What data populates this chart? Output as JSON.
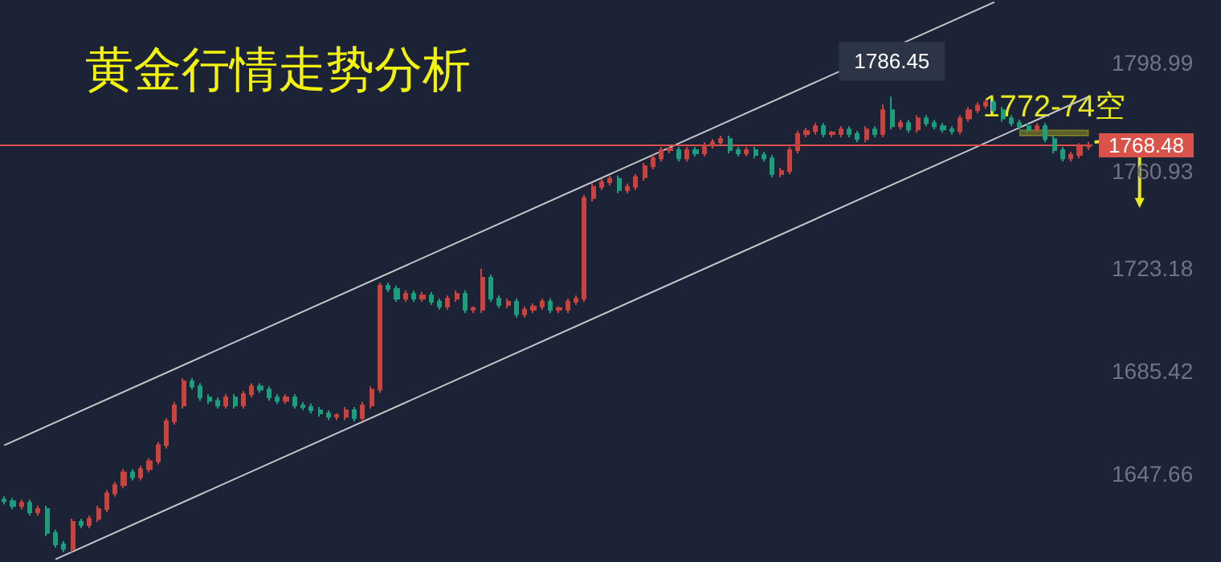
{
  "chart_data": {
    "type": "candlestick",
    "title": "黄金行情走势分析",
    "categories": [
      null,
      null,
      null,
      null,
      null,
      null,
      null,
      null,
      null,
      null,
      null,
      null,
      null,
      null,
      null,
      null,
      null,
      null,
      null,
      null,
      null,
      null,
      null,
      null,
      null,
      null,
      null,
      null,
      null,
      null,
      null,
      null,
      null,
      null,
      null,
      null,
      null,
      null,
      null,
      null,
      null,
      null,
      null,
      null,
      null,
      null,
      null,
      null,
      null,
      null,
      null,
      null,
      null,
      null,
      null,
      null,
      null,
      null,
      null,
      null,
      null,
      null,
      null,
      null,
      null,
      null,
      null,
      null,
      null,
      null,
      null,
      null,
      null,
      null,
      null,
      null,
      null,
      null,
      null,
      null,
      null,
      null,
      null,
      null,
      null,
      null,
      null,
      null,
      null,
      null,
      null,
      null,
      null,
      null,
      null,
      null,
      null,
      null,
      null,
      null,
      null,
      null,
      null,
      null,
      null,
      null,
      null,
      null,
      null,
      null,
      null,
      null,
      null,
      null,
      null,
      null,
      null,
      null,
      null,
      null,
      null,
      null,
      null,
      null,
      null,
      null,
      null,
      null
    ],
    "series": [
      {
        "colors": [
          "#1e9d7c",
          "#1e9d7c",
          "#c9443f",
          "#1e9d7c",
          "#c9443f",
          "#1e9d7c",
          "#1e9d7c",
          "#1e9d7c",
          "#c9443f",
          "#1e9d7c",
          "#c9443f",
          "#c9443f",
          "#c9443f",
          "#c9443f",
          "#c9443f",
          "#1e9d7c",
          "#c9443f",
          "#c9443f",
          "#c9443f",
          "#c9443f",
          "#c9443f",
          "#c9443f",
          "#1e9d7c",
          "#1e9d7c",
          "#1e9d7c",
          "#1e9d7c",
          "#c9443f",
          "#1e9d7c",
          "#c9443f",
          "#c9443f",
          "#1e9d7c",
          "#1e9d7c",
          "#1e9d7c",
          "#c9443f",
          "#1e9d7c",
          "#1e9d7c",
          "#1e9d7c",
          "#1e9d7c",
          "#1e9d7c",
          "#c9443f",
          "#c9443f",
          "#1e9d7c",
          "#c9443f",
          "#c9443f",
          "#c9443f",
          "#1e9d7c",
          "#1e9d7c",
          "#c9443f",
          "#1e9d7c",
          "#c9443f",
          "#1e9d7c",
          "#1e9d7c",
          "#c9443f",
          "#c9443f",
          "#1e9d7c",
          "#c9443f",
          "#c9443f",
          "#1e9d7c",
          "#1e9d7c",
          "#c9443f",
          "#1e9d7c",
          "#c9443f",
          "#c9443f",
          "#c9443f",
          "#1e9d7c",
          "#c9443f",
          "#c9443f",
          "#c9443f",
          "#c9443f",
          "#c9443f",
          "#c9443f",
          "#c9443f",
          "#1e9d7c",
          "#c9443f",
          "#c9443f",
          "#c9443f",
          "#c9443f",
          "#c9443f",
          "#c9443f",
          "#1e9d7c",
          "#c9443f",
          "#1e9d7c",
          "#c9443f",
          "#c9443f",
          "#c9443f",
          "#1e9d7c",
          "#1e9d7c",
          "#c9443f",
          "#1e9d7c",
          "#1e9d7c",
          "#1e9d7c",
          "#c9443f",
          "#c9443f",
          "#c9443f",
          "#c9443f",
          "#c9443f",
          "#1e9d7c",
          "#c9443f",
          "#c9443f",
          "#1e9d7c",
          "#1e9d7c",
          "#c9443f",
          "#1e9d7c",
          "#c9443f",
          "#1e9d7c",
          "#c9443f",
          "#1e9d7c",
          "#c9443f",
          "#1e9d7c",
          "#1e9d7c",
          "#1e9d7c",
          "#1e9d7c",
          "#c9443f",
          "#c9443f",
          "#c9443f",
          "#c9443f",
          "#1e9d7c",
          "#1e9d7c",
          "#1e9d7c",
          "#1e9d7c",
          "#1e9d7c",
          "#c9443f",
          "#1e9d7c",
          "#1e9d7c",
          "#1e9d7c",
          "#c9443f",
          "#c9443f",
          "#c9443f"
        ],
        "ohlc": [
          [
            1638.0,
            1639.2,
            1636.2,
            1637.4
          ],
          [
            1637.4,
            1638.6,
            1634.4,
            1635.6
          ],
          [
            1635.6,
            1638.0,
            1634.4,
            1636.8
          ],
          [
            1636.8,
            1638.0,
            1632.1,
            1633.3
          ],
          [
            1633.3,
            1635.7,
            1632.1,
            1634.5
          ],
          [
            1634.5,
            1635.7,
            1624.5,
            1625.7
          ],
          [
            1625.7,
            1626.9,
            1620.3,
            1621.5
          ],
          [
            1621.5,
            1622.7,
            1618.6,
            1619.8
          ],
          [
            1619.8,
            1631.0,
            1618.6,
            1629.8
          ],
          [
            1629.8,
            1631.0,
            1627.4,
            1628.6
          ],
          [
            1628.6,
            1632.1,
            1627.4,
            1630.9
          ],
          [
            1630.9,
            1635.7,
            1629.7,
            1634.5
          ],
          [
            1634.5,
            1641.5,
            1633.3,
            1640.3
          ],
          [
            1640.3,
            1644.5,
            1639.1,
            1643.3
          ],
          [
            1643.3,
            1649.2,
            1642.1,
            1648.0
          ],
          [
            1648.0,
            1649.2,
            1645.0,
            1646.2
          ],
          [
            1646.2,
            1650.4,
            1645.0,
            1649.2
          ],
          [
            1649.2,
            1653.3,
            1648.0,
            1652.1
          ],
          [
            1652.1,
            1659.2,
            1650.9,
            1658.0
          ],
          [
            1658.0,
            1668.0,
            1656.8,
            1666.8
          ],
          [
            1666.8,
            1673.9,
            1665.6,
            1672.7
          ],
          [
            1672.7,
            1682.7,
            1671.5,
            1681.5
          ],
          [
            1681.5,
            1682.7,
            1678.5,
            1679.7
          ],
          [
            1679.7,
            1680.9,
            1674.4,
            1675.6
          ],
          [
            1675.6,
            1676.8,
            1673.2,
            1674.4
          ],
          [
            1674.4,
            1675.6,
            1671.5,
            1672.7
          ],
          [
            1672.7,
            1676.8,
            1671.5,
            1675.6
          ],
          [
            1675.6,
            1676.8,
            1671.5,
            1672.7
          ],
          [
            1672.7,
            1678.0,
            1671.5,
            1676.8
          ],
          [
            1676.8,
            1680.9,
            1675.6,
            1679.7
          ],
          [
            1679.7,
            1680.9,
            1677.3,
            1678.5
          ],
          [
            1678.5,
            1679.7,
            1674.4,
            1675.6
          ],
          [
            1675.6,
            1676.8,
            1673.2,
            1674.4
          ],
          [
            1674.4,
            1676.8,
            1673.2,
            1675.6
          ],
          [
            1675.6,
            1676.8,
            1671.5,
            1672.7
          ],
          [
            1672.7,
            1673.9,
            1670.9,
            1672.1
          ],
          [
            1672.1,
            1673.3,
            1669.7,
            1670.9
          ],
          [
            1670.9,
            1672.1,
            1668.5,
            1669.7
          ],
          [
            1669.7,
            1670.9,
            1667.3,
            1668.5
          ],
          [
            1668.5,
            1669.7,
            1667.3,
            1669.1
          ],
          [
            1668.5,
            1672.1,
            1667.3,
            1670.9
          ],
          [
            1670.9,
            1672.1,
            1666.8,
            1668.0
          ],
          [
            1668.0,
            1673.9,
            1666.8,
            1672.7
          ],
          [
            1672.7,
            1679.7,
            1671.5,
            1678.5
          ],
          [
            1678.5,
            1717.9,
            1677.3,
            1716.7
          ],
          [
            1716.7,
            1717.9,
            1714.4,
            1715.6
          ],
          [
            1715.6,
            1716.8,
            1710.8,
            1712.0
          ],
          [
            1712.0,
            1715.0,
            1710.8,
            1713.8
          ],
          [
            1713.8,
            1715.0,
            1710.8,
            1712.0
          ],
          [
            1712.0,
            1714.4,
            1710.8,
            1713.2
          ],
          [
            1713.2,
            1714.4,
            1709.7,
            1710.9
          ],
          [
            1710.9,
            1712.1,
            1707.9,
            1709.1
          ],
          [
            1709.1,
            1713.2,
            1707.9,
            1712.0
          ],
          [
            1712.0,
            1715.0,
            1710.8,
            1713.8
          ],
          [
            1713.8,
            1715.0,
            1706.7,
            1707.9
          ],
          [
            1707.9,
            1709.1,
            1706.7,
            1708.5
          ],
          [
            1707.9,
            1723.0,
            1706.7,
            1719.7
          ],
          [
            1719.7,
            1720.9,
            1710.8,
            1712.0
          ],
          [
            1712.0,
            1713.2,
            1708.5,
            1709.7
          ],
          [
            1709.7,
            1712.1,
            1708.5,
            1710.9
          ],
          [
            1710.9,
            1712.1,
            1705.0,
            1706.2
          ],
          [
            1706.2,
            1709.1,
            1705.0,
            1707.9
          ],
          [
            1707.9,
            1710.3,
            1706.7,
            1709.1
          ],
          [
            1709.1,
            1712.1,
            1707.9,
            1710.9
          ],
          [
            1710.9,
            1712.1,
            1706.7,
            1707.9
          ],
          [
            1707.9,
            1709.1,
            1706.7,
            1708.5
          ],
          [
            1707.9,
            1712.1,
            1706.7,
            1710.9
          ],
          [
            1710.9,
            1713.2,
            1709.7,
            1712.0
          ],
          [
            1712.0,
            1750.2,
            1710.8,
            1749.0
          ],
          [
            1749.0,
            1754.4,
            1747.8,
            1753.2
          ],
          [
            1753.2,
            1756.1,
            1752.0,
            1754.9
          ],
          [
            1754.9,
            1757.3,
            1753.7,
            1756.1
          ],
          [
            1756.1,
            1757.3,
            1750.8,
            1752.0
          ],
          [
            1752.0,
            1754.4,
            1750.8,
            1753.2
          ],
          [
            1753.2,
            1757.9,
            1752.0,
            1756.7
          ],
          [
            1756.7,
            1762.0,
            1755.5,
            1760.8
          ],
          [
            1760.8,
            1764.9,
            1759.6,
            1763.7
          ],
          [
            1763.7,
            1767.9,
            1762.5,
            1766.7
          ],
          [
            1766.7,
            1767.9,
            1765.5,
            1767.3
          ],
          [
            1766.7,
            1767.9,
            1762.5,
            1763.7
          ],
          [
            1763.7,
            1767.9,
            1762.5,
            1766.7
          ],
          [
            1766.7,
            1767.9,
            1764.3,
            1765.5
          ],
          [
            1765.5,
            1769.6,
            1764.3,
            1768.4
          ],
          [
            1768.4,
            1770.8,
            1767.2,
            1769.6
          ],
          [
            1769.6,
            1772.0,
            1768.4,
            1770.8
          ],
          [
            1770.8,
            1772.0,
            1765.5,
            1766.7
          ],
          [
            1766.7,
            1767.9,
            1764.3,
            1765.5
          ],
          [
            1765.5,
            1767.9,
            1764.3,
            1766.7
          ],
          [
            1766.7,
            1767.9,
            1763.7,
            1764.9
          ],
          [
            1764.9,
            1766.1,
            1762.5,
            1763.7
          ],
          [
            1763.7,
            1764.9,
            1756.7,
            1757.9
          ],
          [
            1757.9,
            1760.2,
            1756.7,
            1759.0
          ],
          [
            1759.0,
            1767.9,
            1757.8,
            1766.7
          ],
          [
            1766.7,
            1773.8,
            1765.5,
            1772.6
          ],
          [
            1772.6,
            1774.9,
            1771.4,
            1773.7
          ],
          [
            1773.7,
            1776.7,
            1772.5,
            1775.5
          ],
          [
            1775.5,
            1776.7,
            1771.4,
            1772.6
          ],
          [
            1772.6,
            1773.8,
            1771.4,
            1773.2
          ],
          [
            1772.6,
            1775.5,
            1771.4,
            1774.3
          ],
          [
            1774.3,
            1775.5,
            1771.4,
            1772.6
          ],
          [
            1772.6,
            1773.8,
            1769.6,
            1770.8
          ],
          [
            1770.8,
            1775.5,
            1769.6,
            1774.3
          ],
          [
            1774.3,
            1775.5,
            1771.4,
            1772.6
          ],
          [
            1772.6,
            1783.5,
            1771.4,
            1781.4
          ],
          [
            1781.4,
            1786.45,
            1774.3,
            1775.5
          ],
          [
            1775.5,
            1777.9,
            1774.3,
            1776.7
          ],
          [
            1776.7,
            1777.9,
            1773.1,
            1774.3
          ],
          [
            1774.3,
            1779.6,
            1773.1,
            1778.4
          ],
          [
            1778.4,
            1779.6,
            1775.5,
            1776.7
          ],
          [
            1776.7,
            1777.9,
            1774.3,
            1775.5
          ],
          [
            1775.5,
            1776.7,
            1773.1,
            1774.3
          ],
          [
            1774.3,
            1775.5,
            1772.5,
            1773.7
          ],
          [
            1773.7,
            1779.6,
            1772.5,
            1778.4
          ],
          [
            1778.4,
            1782.6,
            1777.2,
            1781.4
          ],
          [
            1781.4,
            1784.3,
            1780.2,
            1783.1
          ],
          [
            1783.1,
            1785.5,
            1781.9,
            1784.3
          ],
          [
            1784.3,
            1785.5,
            1780.2,
            1781.4
          ],
          [
            1781.4,
            1782.6,
            1777.2,
            1778.4
          ],
          [
            1778.4,
            1779.6,
            1775.5,
            1776.7
          ],
          [
            1776.7,
            1777.9,
            1774.3,
            1775.5
          ],
          [
            1775.5,
            1776.7,
            1773.1,
            1774.3
          ],
          [
            1774.3,
            1776.7,
            1773.1,
            1775.5
          ],
          [
            1775.5,
            1776.7,
            1769.6,
            1770.8
          ],
          [
            1770.8,
            1772.0,
            1765.5,
            1766.7
          ],
          [
            1766.7,
            1767.9,
            1762.5,
            1763.7
          ],
          [
            1763.7,
            1766.1,
            1762.5,
            1764.9
          ],
          [
            1764.9,
            1769.2,
            1763.7,
            1768.0
          ],
          [
            1768.0,
            1769.7,
            1766.8,
            1768.48
          ]
        ]
      },
      {
        "type": "line",
        "color": "#c8c8c8",
        "values": [
          1658.0,
          null,
          null,
          null,
          null,
          null,
          null,
          null,
          null,
          null,
          null,
          null,
          null,
          null,
          null,
          null,
          null,
          null,
          null,
          null,
          null,
          null,
          null,
          null,
          null,
          null,
          null,
          null,
          null,
          null,
          null,
          null,
          null,
          null,
          null,
          null,
          null,
          null,
          null,
          null,
          null,
          null,
          null,
          null,
          null,
          null,
          null,
          null,
          null,
          null,
          null,
          null,
          null,
          null,
          null,
          null,
          null,
          null,
          null,
          null,
          null,
          null,
          null,
          null,
          null,
          null,
          null,
          null,
          null,
          null,
          null,
          null,
          null,
          null,
          null,
          null,
          null,
          null,
          null,
          null,
          null,
          null,
          null,
          null,
          null,
          null,
          null,
          null,
          null,
          null,
          null,
          null,
          null,
          null,
          null,
          null,
          null,
          null,
          null,
          null,
          null,
          null,
          null,
          null,
          null,
          null,
          null,
          null,
          null,
          null,
          null,
          null,
          null,
          null,
          null,
          null,
          1821.2,
          null,
          null,
          null,
          null,
          null,
          null,
          null,
          null,
          null,
          null,
          null
        ]
      },
      {
        "type": "line",
        "color": "#c8c8c8",
        "values": [
          null,
          null,
          null,
          null,
          null,
          null,
          1616.0,
          null,
          null,
          null,
          null,
          null,
          null,
          null,
          null,
          null,
          null,
          null,
          null,
          null,
          null,
          null,
          null,
          null,
          null,
          null,
          null,
          null,
          null,
          null,
          null,
          null,
          null,
          null,
          null,
          null,
          null,
          null,
          null,
          null,
          null,
          null,
          null,
          null,
          null,
          null,
          null,
          null,
          null,
          null,
          null,
          null,
          null,
          null,
          null,
          null,
          null,
          null,
          null,
          null,
          null,
          null,
          null,
          null,
          null,
          null,
          null,
          null,
          null,
          null,
          null,
          null,
          null,
          null,
          null,
          null,
          null,
          null,
          null,
          null,
          null,
          null,
          null,
          null,
          null,
          null,
          null,
          null,
          null,
          null,
          null,
          null,
          null,
          null,
          null,
          null,
          null,
          null,
          null,
          null,
          null,
          null,
          null,
          null,
          null,
          null,
          null,
          null,
          null,
          null,
          null,
          null,
          null,
          null,
          null,
          null,
          null,
          null,
          null,
          null,
          null,
          null,
          null,
          null,
          null,
          null,
          null,
          1786.3
        ]
      }
    ],
    "ylim": [
      1615,
      1822
    ],
    "yticks": [
      1647.66,
      1685.42,
      1723.18,
      1760.93,
      1798.99
    ],
    "tick_labels": "y",
    "grid": false,
    "line_style": "solid",
    "ref_lines": [
      {
        "axis": "y",
        "value": 1768.48,
        "label": "1768.48",
        "color": "#d9534a"
      }
    ],
    "bands": [
      {
        "axis": "y",
        "from": 1772,
        "to": 1774,
        "label": "1772-74空",
        "color": "#e8e81a"
      }
    ],
    "annotations": [
      {
        "text": "1786.45",
        "y": 1786.45
      }
    ]
  }
}
